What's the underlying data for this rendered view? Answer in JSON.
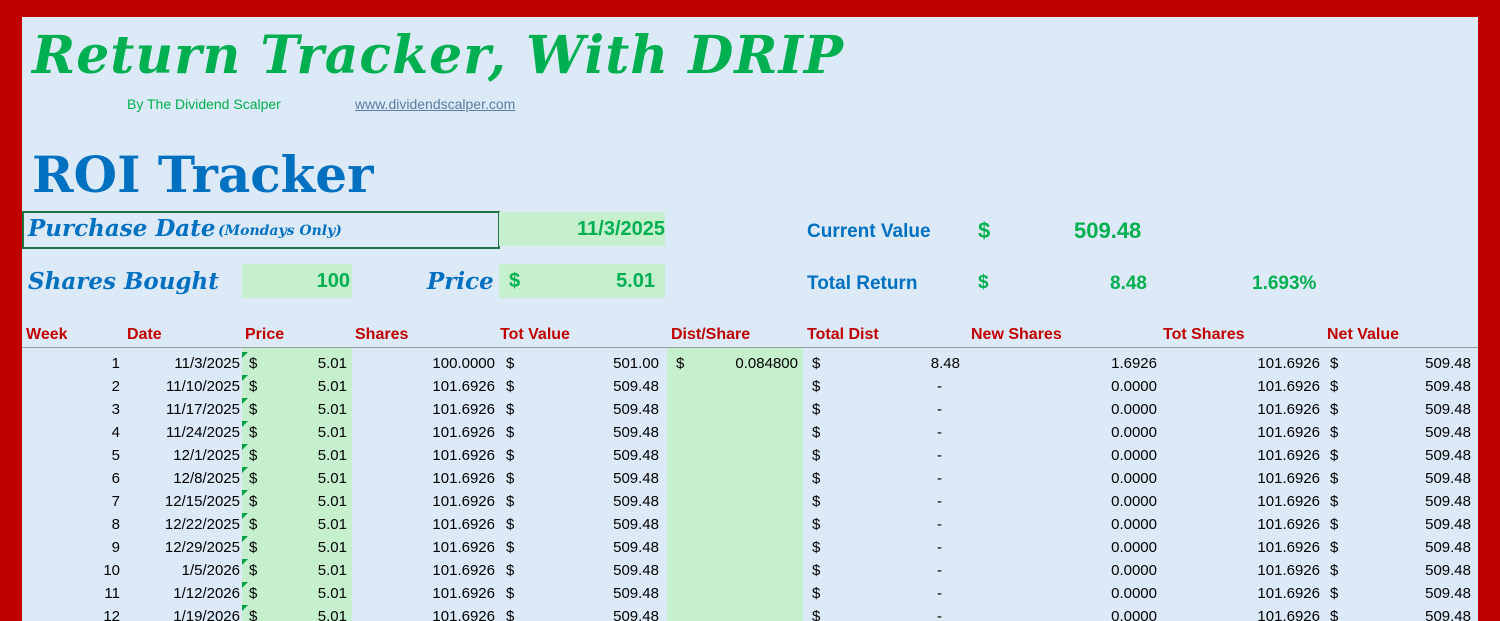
{
  "title": "Return Tracker, With DRIP",
  "byline": "By The Dividend Scalper",
  "website": "www.dividendscalper.com",
  "section_title": "ROI Tracker",
  "inputs": {
    "purchase_date_label": "Purchase Date",
    "purchase_date_note": "(Mondays Only)",
    "purchase_date": "11/3/2025",
    "shares_bought_label": "Shares Bought",
    "shares_bought": "100",
    "price_label": "Price",
    "price_currency": "$",
    "price": "5.01"
  },
  "summary": {
    "current_value_label": "Current Value",
    "current_value_currency": "$",
    "current_value": "509.48",
    "total_return_label": "Total Return",
    "total_return_currency": "$",
    "total_return": "8.48",
    "total_return_pct": "1.693%"
  },
  "colors": {
    "border": "#c00000",
    "background": "#dce9f6",
    "input_fill": "#c6efce",
    "accent_green": "#00b050",
    "accent_blue": "#0070c0",
    "header_red": "#c00000"
  },
  "table": {
    "headers": [
      "Week",
      "Date",
      "Price",
      "Shares",
      "Tot Value",
      "Dist/Share",
      "Total Dist",
      "New Shares",
      "Tot Shares",
      "Net Value"
    ],
    "currency": "$",
    "rows": [
      {
        "week": "1",
        "date": "11/3/2025",
        "price": "5.01",
        "shares": "100.0000",
        "tot_value": "501.00",
        "dist_share": "0.084800",
        "total_dist": "8.48",
        "new_shares": "1.6926",
        "tot_shares": "101.6926",
        "net_value": "509.48"
      },
      {
        "week": "2",
        "date": "11/10/2025",
        "price": "5.01",
        "shares": "101.6926",
        "tot_value": "509.48",
        "dist_share": "",
        "total_dist": "-",
        "new_shares": "0.0000",
        "tot_shares": "101.6926",
        "net_value": "509.48"
      },
      {
        "week": "3",
        "date": "11/17/2025",
        "price": "5.01",
        "shares": "101.6926",
        "tot_value": "509.48",
        "dist_share": "",
        "total_dist": "-",
        "new_shares": "0.0000",
        "tot_shares": "101.6926",
        "net_value": "509.48"
      },
      {
        "week": "4",
        "date": "11/24/2025",
        "price": "5.01",
        "shares": "101.6926",
        "tot_value": "509.48",
        "dist_share": "",
        "total_dist": "-",
        "new_shares": "0.0000",
        "tot_shares": "101.6926",
        "net_value": "509.48"
      },
      {
        "week": "5",
        "date": "12/1/2025",
        "price": "5.01",
        "shares": "101.6926",
        "tot_value": "509.48",
        "dist_share": "",
        "total_dist": "-",
        "new_shares": "0.0000",
        "tot_shares": "101.6926",
        "net_value": "509.48"
      },
      {
        "week": "6",
        "date": "12/8/2025",
        "price": "5.01",
        "shares": "101.6926",
        "tot_value": "509.48",
        "dist_share": "",
        "total_dist": "-",
        "new_shares": "0.0000",
        "tot_shares": "101.6926",
        "net_value": "509.48"
      },
      {
        "week": "7",
        "date": "12/15/2025",
        "price": "5.01",
        "shares": "101.6926",
        "tot_value": "509.48",
        "dist_share": "",
        "total_dist": "-",
        "new_shares": "0.0000",
        "tot_shares": "101.6926",
        "net_value": "509.48"
      },
      {
        "week": "8",
        "date": "12/22/2025",
        "price": "5.01",
        "shares": "101.6926",
        "tot_value": "509.48",
        "dist_share": "",
        "total_dist": "-",
        "new_shares": "0.0000",
        "tot_shares": "101.6926",
        "net_value": "509.48"
      },
      {
        "week": "9",
        "date": "12/29/2025",
        "price": "5.01",
        "shares": "101.6926",
        "tot_value": "509.48",
        "dist_share": "",
        "total_dist": "-",
        "new_shares": "0.0000",
        "tot_shares": "101.6926",
        "net_value": "509.48"
      },
      {
        "week": "10",
        "date": "1/5/2026",
        "price": "5.01",
        "shares": "101.6926",
        "tot_value": "509.48",
        "dist_share": "",
        "total_dist": "-",
        "new_shares": "0.0000",
        "tot_shares": "101.6926",
        "net_value": "509.48"
      },
      {
        "week": "11",
        "date": "1/12/2026",
        "price": "5.01",
        "shares": "101.6926",
        "tot_value": "509.48",
        "dist_share": "",
        "total_dist": "-",
        "new_shares": "0.0000",
        "tot_shares": "101.6926",
        "net_value": "509.48"
      },
      {
        "week": "12",
        "date": "1/19/2026",
        "price": "5.01",
        "shares": "101.6926",
        "tot_value": "509.48",
        "dist_share": "",
        "total_dist": "-",
        "new_shares": "0.0000",
        "tot_shares": "101.6926",
        "net_value": "509.48"
      }
    ]
  }
}
